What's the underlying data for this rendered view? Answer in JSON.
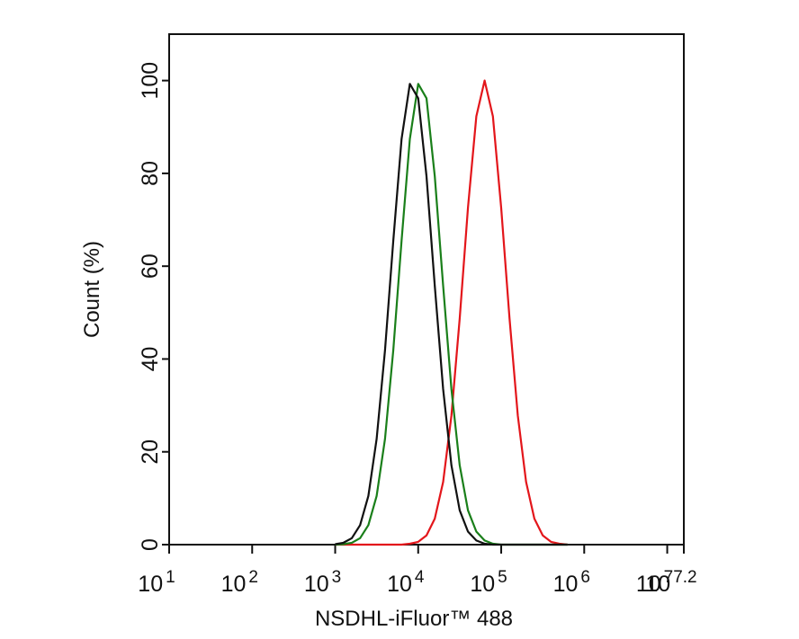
{
  "chart_data": {
    "type": "line",
    "x_label": "NSDHL-iFluor™ 488",
    "y_label": "Count  (%)",
    "x_scale": "log",
    "xlim": [
      10,
      15848932
    ],
    "xticks": [
      {
        "value": 10,
        "label": "10",
        "sup": "1"
      },
      {
        "value": 100,
        "label": "10",
        "sup": "2"
      },
      {
        "value": 1000,
        "label": "10",
        "sup": "3"
      },
      {
        "value": 10000,
        "label": "10",
        "sup": "4"
      },
      {
        "value": 100000,
        "label": "10",
        "sup": "5"
      },
      {
        "value": 1000000,
        "label": "10",
        "sup": "6"
      },
      {
        "value": 10000000,
        "label": "10",
        "sup": "7"
      },
      {
        "value": 15848932,
        "label": "10",
        "sup": "7.2"
      }
    ],
    "ylim": [
      0,
      110
    ],
    "yticks": [
      0,
      20,
      40,
      60,
      80,
      100
    ],
    "x": [
      1000,
      1259,
      1585,
      1995,
      2512,
      3162,
      3981,
      5012,
      6310,
      7943,
      10000,
      12589,
      15849,
      19953,
      25119,
      31623,
      39811,
      50119,
      63096,
      79433,
      100000,
      125893,
      158489,
      199526,
      251189,
      316228,
      398107,
      501187,
      630957
    ],
    "series": [
      {
        "color": "#e3161b",
        "values": [
          0,
          0,
          0,
          0,
          0,
          0,
          0,
          0,
          0,
          0.2,
          0.6,
          2.0,
          5.6,
          13.5,
          27.8,
          48.7,
          72.6,
          92.3,
          100,
          92.3,
          72.6,
          48.7,
          27.8,
          13.5,
          5.6,
          2.0,
          0.6,
          0.2,
          0
        ]
      },
      {
        "color": "#1a7f1a",
        "values": [
          0,
          0.1,
          0.4,
          1.4,
          4.2,
          10.5,
          22.8,
          41.9,
          65.5,
          87.4,
          99.3,
          96.2,
          79.4,
          55.8,
          33.5,
          17.1,
          7.4,
          2.8,
          0.9,
          0.2,
          0,
          0,
          0,
          0,
          0,
          0,
          0,
          0,
          0
        ]
      },
      {
        "color": "#111111",
        "values": [
          0.1,
          0.4,
          1.4,
          4.2,
          10.5,
          22.8,
          41.9,
          65.5,
          87.4,
          99.3,
          96.2,
          79.4,
          55.8,
          33.5,
          17.1,
          7.4,
          2.8,
          0.9,
          0.2,
          0,
          0,
          0,
          0,
          0,
          0,
          0,
          0,
          0,
          0
        ]
      }
    ]
  }
}
